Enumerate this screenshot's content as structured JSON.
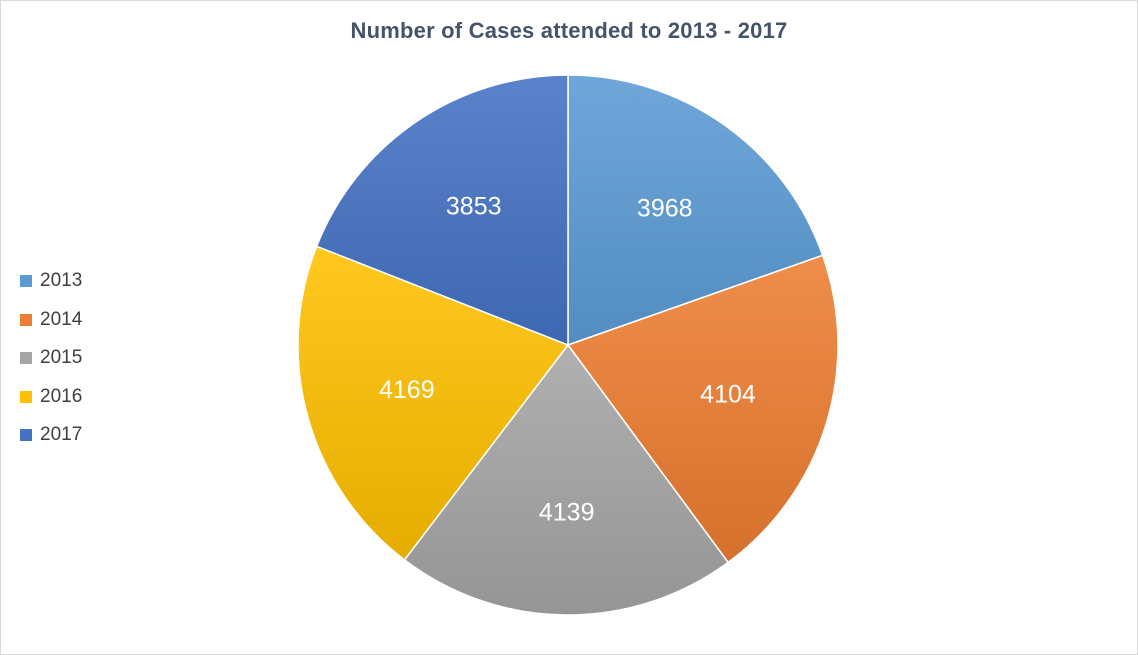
{
  "chart_data": {
    "type": "pie",
    "title": "Number of Cases attended to 2013 - 2017",
    "categories": [
      "2013",
      "2014",
      "2015",
      "2016",
      "2017"
    ],
    "values": [
      3968,
      4104,
      4139,
      4169,
      3853
    ],
    "colors": [
      "#5b9bd5",
      "#ed7d31",
      "#a5a5a5",
      "#ffc000",
      "#4472c4"
    ],
    "legend_position": "left",
    "data_labels": true,
    "start_angle_deg": 0,
    "direction": "clockwise"
  }
}
